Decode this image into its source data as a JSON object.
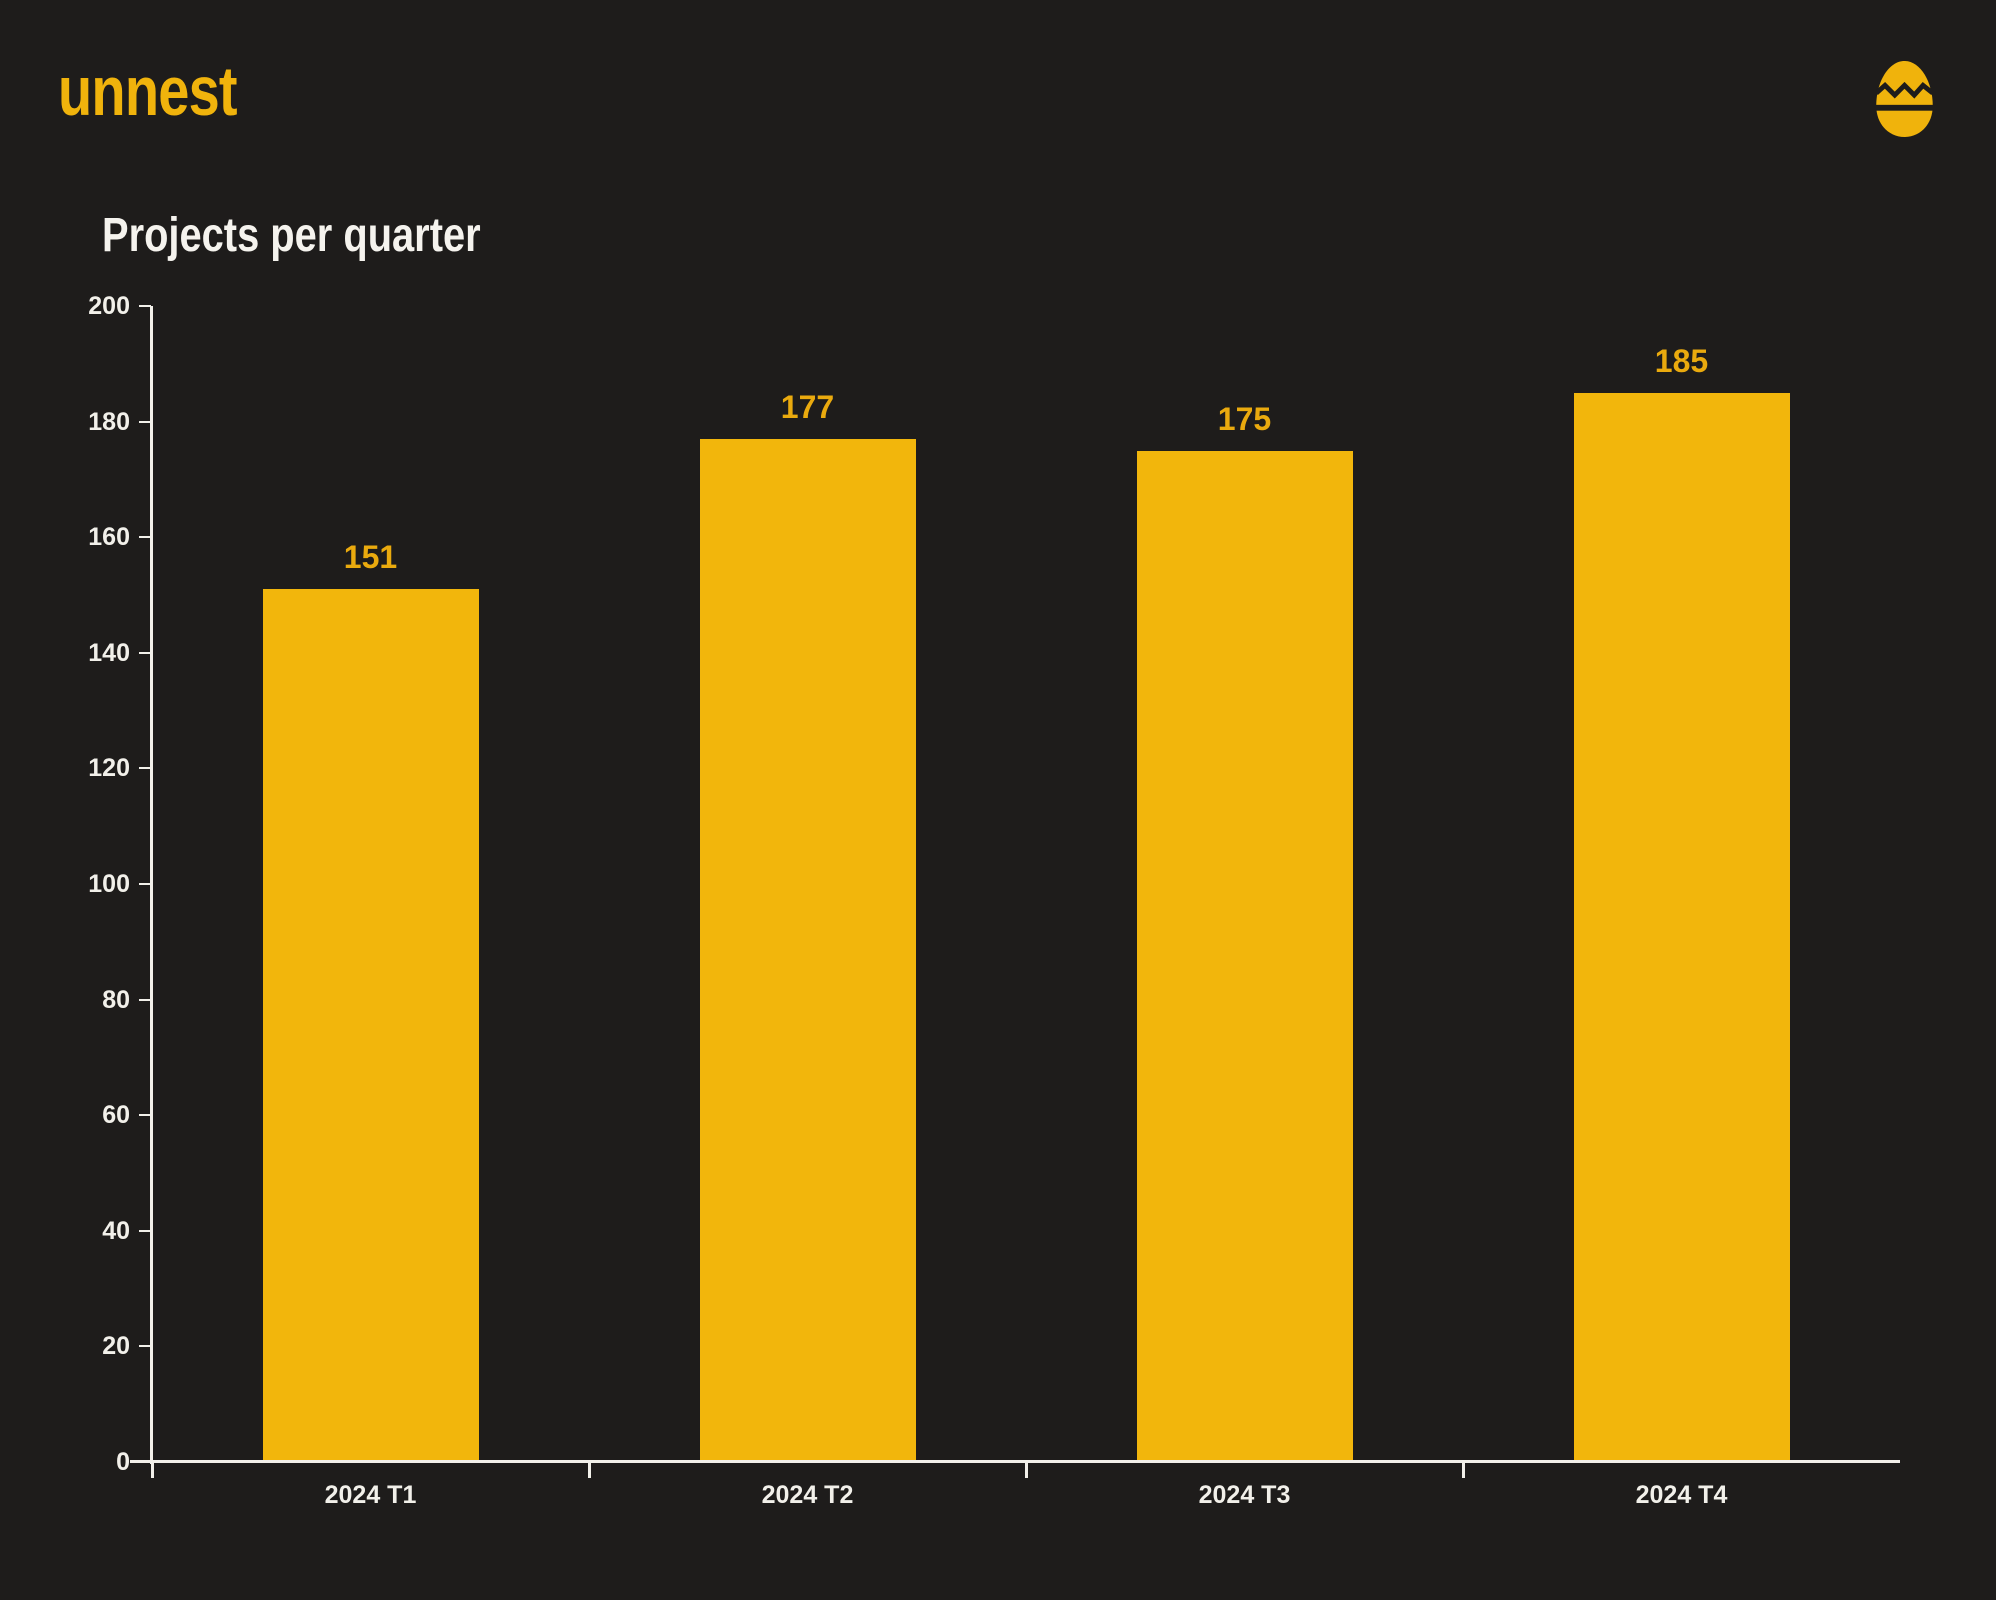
{
  "theme": {
    "background": "#1E1C1B",
    "accent": "#F0B30C",
    "title_color": "#F5F3EE",
    "axis_color": "#F2F0EA"
  },
  "header": {
    "logo_text": "unnest",
    "logo_icon": "egg-icon"
  },
  "chart_data": {
    "type": "bar",
    "title": "Projects per quarter",
    "categories": [
      "2024 T1",
      "2024 T2",
      "2024 T3",
      "2024 T4"
    ],
    "values": [
      151,
      177,
      175,
      185
    ],
    "bar_labels": [
      "151",
      "177",
      "175",
      "185"
    ],
    "xlabel": "",
    "ylabel": "",
    "ylim": [
      0,
      200
    ],
    "ytick_interval": 20,
    "yticks": [
      0,
      20,
      40,
      60,
      80,
      100,
      120,
      140,
      160,
      180,
      200
    ],
    "grid": "off",
    "legend": "none",
    "bar_color": "#F2B60C",
    "value_label_color": "#EAAA0E",
    "tick_label_color": "#F2F0EA"
  }
}
